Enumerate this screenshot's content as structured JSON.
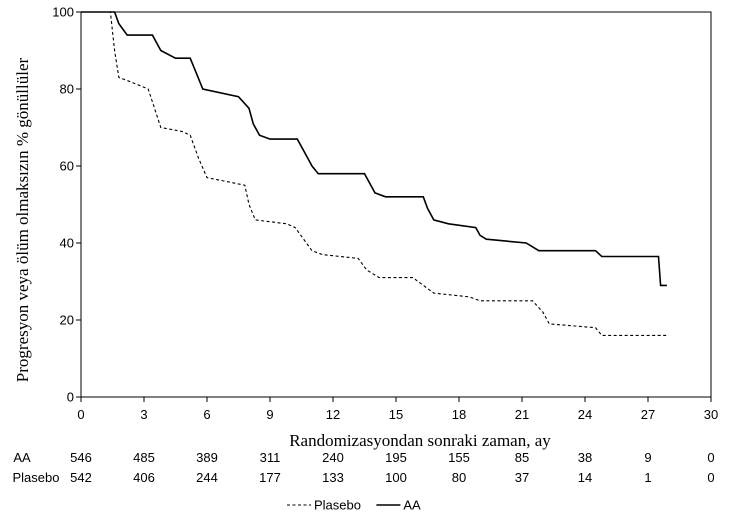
{
  "chart_data": {
    "type": "line",
    "title": "",
    "xlabel": "Randomizasyondan sonraki zaman, ay",
    "ylabel": "Progresyon veya ölüm olmaksızın % gönüllüler",
    "xlim": [
      0,
      30
    ],
    "ylim": [
      0,
      100
    ],
    "xticks": [
      "0",
      "3",
      "6",
      "9",
      "12",
      "15",
      "18",
      "21",
      "24",
      "27",
      "30"
    ],
    "yticks": [
      "0",
      "20",
      "40",
      "60",
      "80",
      "100"
    ],
    "grid": false,
    "legend_position": "bottom-center",
    "legend": [
      {
        "name": "Plasebo",
        "style": "dashed"
      },
      {
        "name": "AA",
        "style": "solid"
      }
    ],
    "series": [
      {
        "name": "AA",
        "style": "solid",
        "color": "#000000",
        "x": [
          0,
          1.6,
          1.8,
          2.2,
          3.4,
          3.6,
          3.8,
          4.5,
          5.2,
          5.5,
          5.8,
          7.5,
          8.0,
          8.2,
          8.5,
          9.0,
          10.3,
          10.8,
          11.0,
          11.3,
          11.8,
          13.5,
          13.8,
          14.0,
          14.5,
          16.3,
          16.5,
          16.8,
          17.5,
          18.8,
          19.0,
          19.3,
          21.2,
          21.5,
          21.8,
          24.5,
          24.8,
          27.5,
          27.6,
          27.9
        ],
        "y": [
          100,
          100,
          97,
          94,
          94,
          92,
          90,
          88,
          88,
          84,
          80,
          78,
          75,
          71,
          68,
          67,
          67,
          62,
          60,
          58,
          58,
          58,
          55,
          53,
          52,
          52,
          49,
          46,
          45,
          44,
          42,
          41,
          40,
          39,
          38,
          38,
          36.5,
          36.5,
          29,
          29
        ]
      },
      {
        "name": "Plasebo",
        "style": "dashed",
        "color": "#000000",
        "x": [
          0,
          1.4,
          1.6,
          1.8,
          2.3,
          3.2,
          3.5,
          3.8,
          4.8,
          5.2,
          5.6,
          6.0,
          7.8,
          8.0,
          8.3,
          9.8,
          10.2,
          11.0,
          11.5,
          13.2,
          13.6,
          14.2,
          15.8,
          16.3,
          16.8,
          18.5,
          19.0,
          21.5,
          22.0,
          22.3,
          24.5,
          24.8,
          27.9
        ],
        "y": [
          100,
          100,
          90,
          83,
          82,
          80,
          75,
          70,
          69,
          68,
          62,
          57,
          55,
          50,
          46,
          45,
          44,
          38,
          37,
          36,
          33,
          31,
          31,
          29,
          27,
          26,
          25,
          25,
          22,
          19,
          18,
          16,
          16
        ]
      }
    ],
    "risk_table": {
      "rows": [
        {
          "label": "AA",
          "values": [
            "546",
            "485",
            "389",
            "311",
            "240",
            "195",
            "155",
            "85",
            "38",
            "9",
            "0"
          ]
        },
        {
          "label": "Plasebo",
          "values": [
            "542",
            "406",
            "244",
            "177",
            "133",
            "100",
            "80",
            "37",
            "14",
            "1",
            "0"
          ]
        }
      ]
    }
  }
}
